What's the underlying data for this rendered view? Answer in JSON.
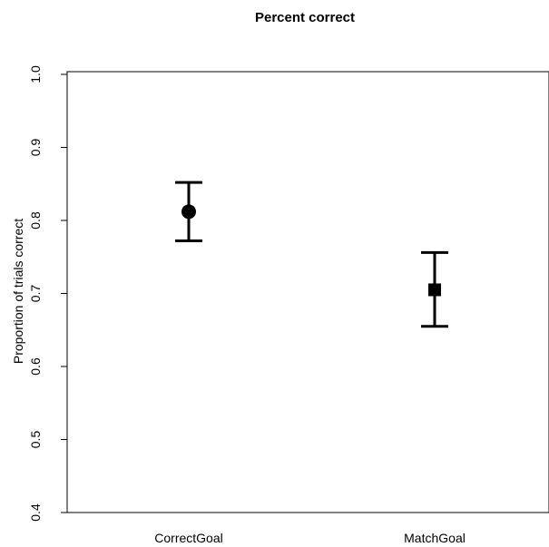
{
  "chart_data": {
    "type": "scatter",
    "title": "Percent correct",
    "xlabel": "",
    "ylabel": "Proportion of trials correct",
    "categories": [
      "CorrectGoal",
      "MatchGoal"
    ],
    "ylim": [
      0.4,
      1.0
    ],
    "y_ticks": [
      0.4,
      0.5,
      0.6,
      0.7,
      0.8,
      0.9,
      1.0
    ],
    "y_tick_labels": [
      "0.4",
      "0.5",
      "0.6",
      "0.7",
      "0.8",
      "0.9",
      "1.0"
    ],
    "grid": false,
    "legend": "none",
    "points": [
      {
        "category": "CorrectGoal",
        "value": 0.812,
        "lower": 0.772,
        "upper": 0.852,
        "marker": "circle"
      },
      {
        "category": "MatchGoal",
        "value": 0.705,
        "lower": 0.655,
        "upper": 0.756,
        "marker": "square"
      }
    ],
    "colors": {
      "marker": "#000000",
      "axis": "#000000",
      "background": "#ffffff"
    }
  }
}
